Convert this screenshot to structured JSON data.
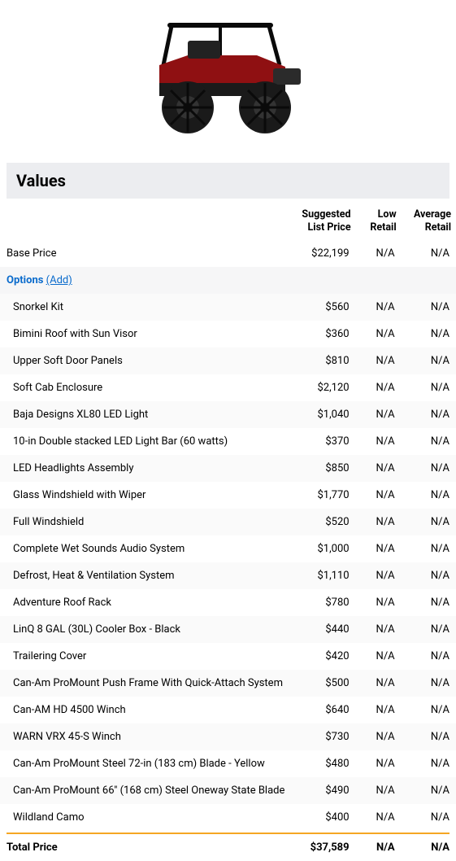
{
  "section_title": "Values",
  "headers": {
    "suggested": "Suggested List Price",
    "low": "Low Retail",
    "avg": "Average Retail"
  },
  "base": {
    "label": "Base Price",
    "slp": "$22,199",
    "low": "N/A",
    "avg": "N/A"
  },
  "options_header": {
    "label": "Options",
    "add": "(Add)"
  },
  "options": [
    {
      "label": "Snorkel Kit",
      "slp": "$560",
      "low": "N/A",
      "avg": "N/A"
    },
    {
      "label": "Bimini Roof with Sun Visor",
      "slp": "$360",
      "low": "N/A",
      "avg": "N/A"
    },
    {
      "label": "Upper Soft Door Panels",
      "slp": "$810",
      "low": "N/A",
      "avg": "N/A"
    },
    {
      "label": "Soft Cab Enclosure",
      "slp": "$2,120",
      "low": "N/A",
      "avg": "N/A"
    },
    {
      "label": "Baja Designs XL80 LED Light",
      "slp": "$1,040",
      "low": "N/A",
      "avg": "N/A"
    },
    {
      "label": "10-in Double stacked LED Light Bar (60 watts)",
      "slp": "$370",
      "low": "N/A",
      "avg": "N/A"
    },
    {
      "label": "LED Headlights Assembly",
      "slp": "$850",
      "low": "N/A",
      "avg": "N/A"
    },
    {
      "label": "Glass Windshield with Wiper",
      "slp": "$1,770",
      "low": "N/A",
      "avg": "N/A"
    },
    {
      "label": "Full Windshield",
      "slp": "$520",
      "low": "N/A",
      "avg": "N/A"
    },
    {
      "label": "Complete Wet Sounds Audio System",
      "slp": "$1,000",
      "low": "N/A",
      "avg": "N/A"
    },
    {
      "label": "Defrost, Heat & Ventilation System",
      "slp": "$1,110",
      "low": "N/A",
      "avg": "N/A"
    },
    {
      "label": "Adventure Roof Rack",
      "slp": "$780",
      "low": "N/A",
      "avg": "N/A"
    },
    {
      "label": "LinQ 8 GAL (30L) Cooler Box - Black",
      "slp": "$440",
      "low": "N/A",
      "avg": "N/A"
    },
    {
      "label": "Trailering Cover",
      "slp": "$420",
      "low": "N/A",
      "avg": "N/A"
    },
    {
      "label": "Can-Am ProMount Push Frame With Quick-Attach System",
      "slp": "$500",
      "low": "N/A",
      "avg": "N/A"
    },
    {
      "label": "Can-AM HD 4500 Winch",
      "slp": "$640",
      "low": "N/A",
      "avg": "N/A"
    },
    {
      "label": "WARN VRX 45-S Winch",
      "slp": "$730",
      "low": "N/A",
      "avg": "N/A"
    },
    {
      "label": "Can-Am ProMount Steel 72-in (183 cm) Blade - Yellow",
      "slp": "$480",
      "low": "N/A",
      "avg": "N/A"
    },
    {
      "label": "Can-Am ProMount 66'' (168 cm) Steel Oneway State Blade",
      "slp": "$490",
      "low": "N/A",
      "avg": "N/A"
    },
    {
      "label": "Wildland Camo",
      "slp": "$400",
      "low": "N/A",
      "avg": "N/A"
    }
  ],
  "total": {
    "label": "Total Price",
    "slp": "$37,589",
    "low": "N/A",
    "avg": "N/A"
  }
}
